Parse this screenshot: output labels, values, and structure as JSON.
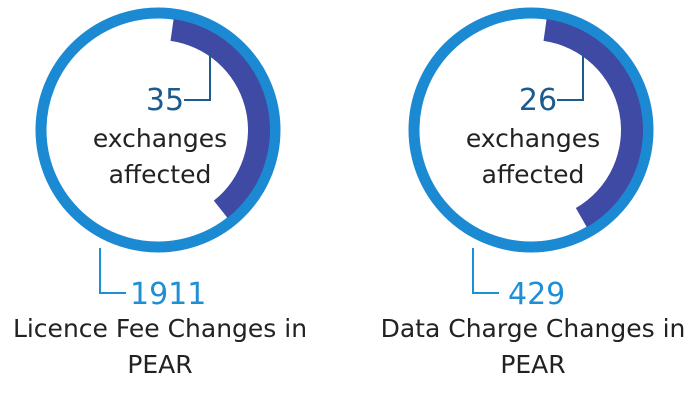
{
  "chart_data": [
    {
      "type": "pie",
      "variant": "donut",
      "value": 35,
      "value_caption": [
        "exchanges",
        "affected"
      ],
      "total": 1911,
      "caption": [
        "Licence Fee Changes in",
        "PEAR"
      ],
      "colors": {
        "ring": "#1b8ad3",
        "arc": "#3e4aa4",
        "value_text": "#1c5b8f",
        "total_text": "#1d8fd6"
      }
    },
    {
      "type": "pie",
      "variant": "donut",
      "value": 26,
      "value_caption": [
        "exchanges",
        "affected"
      ],
      "total": 429,
      "caption": [
        "Data Charge Changes in",
        "PEAR"
      ],
      "colors": {
        "ring": "#1b8ad3",
        "arc": "#3e4aa4",
        "value_text": "#1c5b8f",
        "total_text": "#1d8fd6"
      }
    }
  ]
}
